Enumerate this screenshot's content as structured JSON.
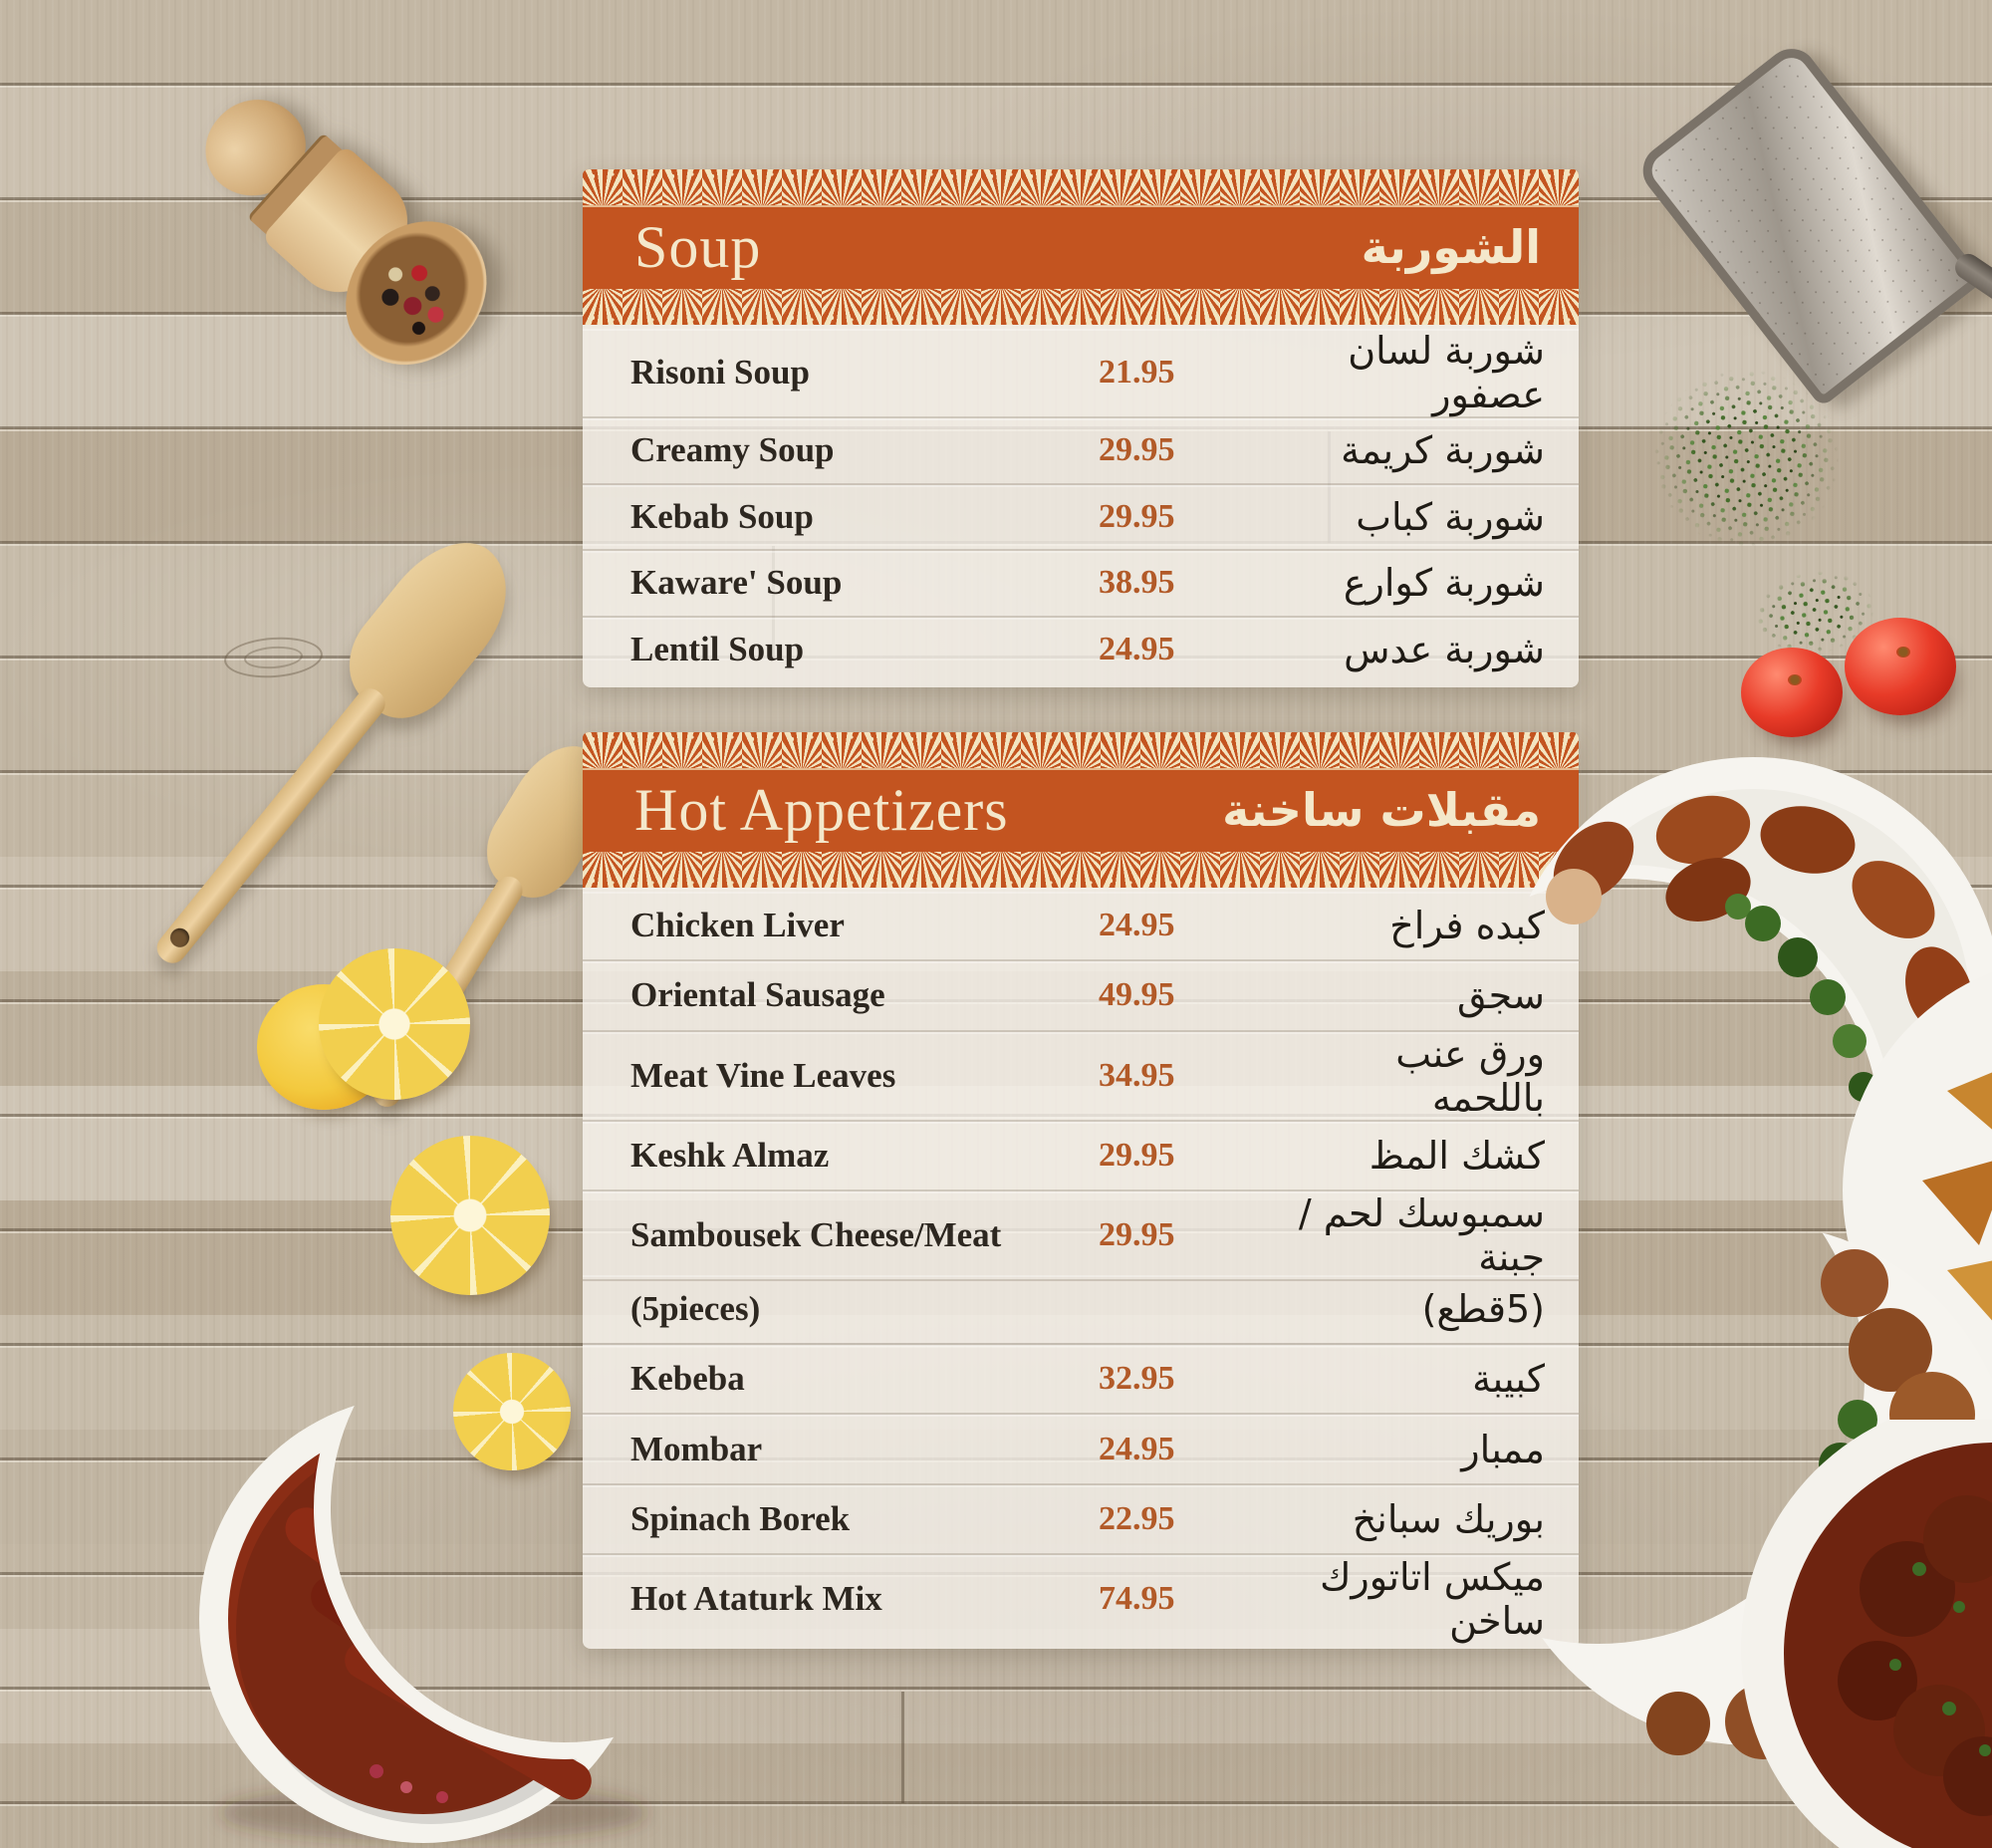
{
  "menu": {
    "sections": [
      {
        "id": "soup",
        "title_en": "Soup",
        "title_ar": "الشوربة",
        "items": [
          {
            "name_en": "Risoni Soup",
            "price": "21.95",
            "name_ar": "شوربة لسان عصفور"
          },
          {
            "name_en": "Creamy Soup",
            "price": "29.95",
            "name_ar": "شوربة كريمة"
          },
          {
            "name_en": "Kebab Soup",
            "price": "29.95",
            "name_ar": "شوربة كباب"
          },
          {
            "name_en": "Kaware' Soup",
            "price": "38.95",
            "name_ar": "شوربة كوارع"
          },
          {
            "name_en": "Lentil Soup",
            "price": "24.95",
            "name_ar": "شوربة عدس"
          }
        ]
      },
      {
        "id": "hot-appetizers",
        "title_en": "Hot Appetizers",
        "title_ar": "مقبلات ساخنة",
        "items": [
          {
            "name_en": "Chicken Liver",
            "price": "24.95",
            "name_ar": "كبده فراخ"
          },
          {
            "name_en": "Oriental Sausage",
            "price": "49.95",
            "name_ar": "سجق"
          },
          {
            "name_en": "Meat Vine Leaves",
            "price": "34.95",
            "name_ar": "ورق عنب باللحمه"
          },
          {
            "name_en": "Keshk Almaz",
            "price": "29.95",
            "name_ar": "كشك المظ"
          },
          {
            "name_en": "Sambousek Cheese/Meat",
            "price": "29.95",
            "name_ar": "سمبوسك لحم /جبنة",
            "name_en2": "(5pieces)",
            "name_ar2": "(5قطع)"
          },
          {
            "name_en": "Kebeba",
            "price": "32.95",
            "name_ar": "كبيبة"
          },
          {
            "name_en": "Mombar",
            "price": "24.95",
            "name_ar": "ممبار"
          },
          {
            "name_en": "Spinach Borek",
            "price": "22.95",
            "name_ar": "بوريك سبانخ"
          },
          {
            "name_en": "Hot Ataturk Mix",
            "price": "74.95",
            "name_ar": "ميكس اتاتورك ساخن"
          }
        ]
      }
    ],
    "colors": {
      "header_orange": "#c35420",
      "lace_cream": "#f3e4c0",
      "price": "#b25a28",
      "item_text": "#2d2720",
      "wood_base": "#c3b7a4"
    }
  },
  "decor": {
    "props": [
      "wooden-spice-scoop-icon",
      "peppercorns-icon",
      "wooden-spatula-icon",
      "metal-grater-icon",
      "dried-herbs-icon",
      "tomato-icon",
      "lemon-slice-icon",
      "sausage-crescent-dish-icon",
      "kibbeh-crescent-plate-icon",
      "meatball-crescent-plate-icon",
      "samosa-plate-icon",
      "meat-stew-bowl-icon"
    ]
  }
}
